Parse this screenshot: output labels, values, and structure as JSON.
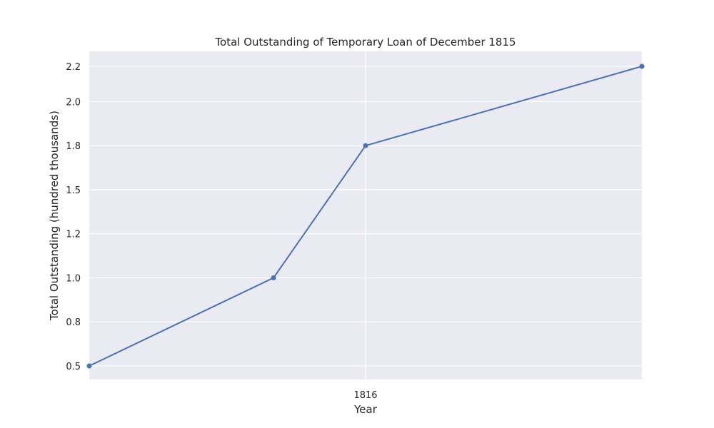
{
  "chart_data": {
    "type": "line",
    "title": "Total Outstanding of Temporary Loan of December 1815",
    "xlabel": "Year",
    "ylabel": "Total Outstanding (hundred thousands)",
    "x_tick_values": [
      1816
    ],
    "x_tick_labels": [
      "1816"
    ],
    "y_ticks": [
      0.5,
      0.75,
      1.0,
      1.25,
      1.5,
      1.75,
      2.0,
      2.2
    ],
    "y_tick_labels": [
      "0.5",
      "0.8",
      "1.0",
      "1.2",
      "1.5",
      "1.8",
      "2.0",
      "2.2"
    ],
    "xlim": [
      1815.0,
      1817.0
    ],
    "ylim": [
      0.5,
      2.2
    ],
    "grid": true,
    "series": [
      {
        "x": [
          1815.0,
          1815.667,
          1816.0,
          1817.0
        ],
        "values": [
          0.5,
          1.0,
          1.75,
          2.2
        ],
        "color": "#4c72b0"
      }
    ],
    "colors": {
      "plot_background": "#eaeaf2",
      "grid": "#ffffff",
      "line": "#4c72b0"
    }
  }
}
